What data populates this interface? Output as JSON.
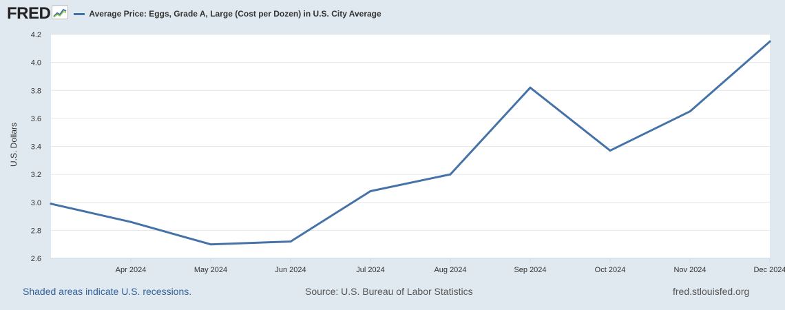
{
  "header": {
    "logo_text": "FRED",
    "logo_icon": "line-chart-icon",
    "legend_label": "Average Price: Eggs, Grade A, Large (Cost per Dozen) in U.S. City Average"
  },
  "footer": {
    "recession_note": "Shaded areas indicate U.S. recessions.",
    "source": "Source: U.S. Bureau of Labor Statistics",
    "site": "fred.stlouisfed.org"
  },
  "colors": {
    "series": "#4572a7",
    "background": "#e1e9f0",
    "plot_background": "#ffffff",
    "grid": "#e6e6e6"
  },
  "chart_data": {
    "type": "line",
    "title": "",
    "xlabel": "",
    "ylabel": "U.S. Dollars",
    "ylim": [
      2.6,
      4.2
    ],
    "yticks": [
      "2.6",
      "2.8",
      "3.0",
      "3.2",
      "3.4",
      "3.6",
      "3.8",
      "4.0",
      "4.2"
    ],
    "x_start": "Mar 2024",
    "x_end": "Dec 2024",
    "xtick_labels": [
      "Apr 2024",
      "May 2024",
      "Jun 2024",
      "Jul 2024",
      "Aug 2024",
      "Sep 2024",
      "Oct 2024",
      "Nov 2024",
      "Dec 2024"
    ],
    "grid": true,
    "legend": "top-left",
    "series": [
      {
        "name": "Average Price: Eggs, Grade A, Large (Cost per Dozen) in U.S. City Average",
        "x": [
          "Mar 2024",
          "Apr 2024",
          "May 2024",
          "Jun 2024",
          "Jul 2024",
          "Aug 2024",
          "Sep 2024",
          "Oct 2024",
          "Nov 2024",
          "Dec 2024"
        ],
        "values": [
          2.99,
          2.86,
          2.7,
          2.72,
          3.08,
          3.2,
          3.82,
          3.37,
          3.65,
          4.15
        ]
      }
    ]
  }
}
